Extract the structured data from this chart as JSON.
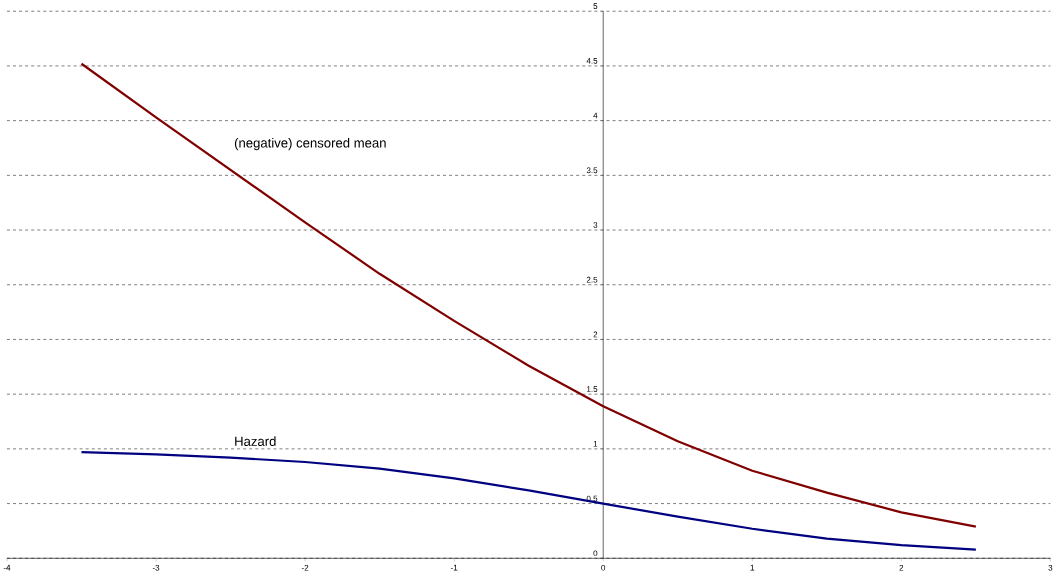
{
  "chart_data": {
    "type": "line",
    "x": [
      -3.5,
      -3,
      -2.5,
      -2,
      -1.5,
      -1,
      -0.5,
      0,
      0.5,
      1,
      1.5,
      2,
      2.5
    ],
    "series": [
      {
        "name": "(negative) censored mean",
        "color": "#800000",
        "values": [
          4.52,
          4.03,
          3.55,
          3.07,
          2.6,
          2.17,
          1.76,
          1.39,
          1.07,
          0.8,
          0.6,
          0.42,
          0.29
        ]
      },
      {
        "name": "Hazard",
        "color": "#000080",
        "values": [
          0.97,
          0.95,
          0.92,
          0.88,
          0.82,
          0.73,
          0.62,
          0.5,
          0.38,
          0.27,
          0.18,
          0.12,
          0.08
        ]
      }
    ],
    "xlim": [
      -4,
      3
    ],
    "xticks": [
      -4,
      -3,
      -2,
      -1,
      0,
      1,
      2,
      3
    ],
    "ylim": [
      0,
      5
    ],
    "yticks": [
      0,
      0.5,
      1,
      1.5,
      2,
      2.5,
      3,
      3.5,
      4,
      4.5,
      5
    ],
    "grid": "y"
  }
}
